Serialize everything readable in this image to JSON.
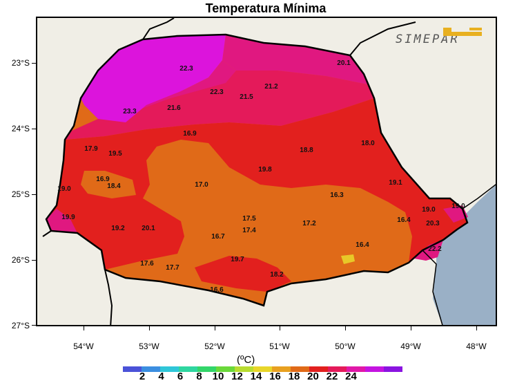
{
  "title": "Temperatura Mínima",
  "logo": "SIMEPAR",
  "units": "(ºC)",
  "y_labels": [
    "23°S",
    "24°S",
    "25°S",
    "26°S",
    "27°S"
  ],
  "x_labels": [
    "54°W",
    "53°W",
    "52°W",
    "51°W",
    "50°W",
    "49°W",
    "48°W"
  ],
  "colorbar": {
    "colors": [
      "#4a52d8",
      "#3b8ee0",
      "#2fc6d8",
      "#2fd6a0",
      "#33d66a",
      "#6ad83a",
      "#b8dc30",
      "#e8d62a",
      "#e8a020",
      "#e06a18",
      "#e2201e",
      "#e41a5a",
      "#e018a8",
      "#c414e0",
      "#8a14e0"
    ],
    "labels": [
      "2",
      "4",
      "6",
      "8",
      "10",
      "12",
      "14",
      "16",
      "18",
      "20",
      "22",
      "24"
    ]
  },
  "values": [
    {
      "t": "22.3"
    },
    {
      "t": "20.1"
    },
    {
      "t": "22.3"
    },
    {
      "t": "21.2"
    },
    {
      "t": "21.5"
    },
    {
      "t": "23.3"
    },
    {
      "t": "21.6"
    },
    {
      "t": "16.9"
    },
    {
      "t": "17.9"
    },
    {
      "t": "19.5"
    },
    {
      "t": "18.8"
    },
    {
      "t": "18.0"
    },
    {
      "t": "19.8"
    },
    {
      "t": "16.9"
    },
    {
      "t": "18.4"
    },
    {
      "t": "17.0"
    },
    {
      "t": "19.0"
    },
    {
      "t": "19.1"
    },
    {
      "t": "16.3"
    },
    {
      "t": "19.0"
    },
    {
      "t": "19.0"
    },
    {
      "t": "19.9"
    },
    {
      "t": "17.5"
    },
    {
      "t": "19.2"
    },
    {
      "t": "20.1"
    },
    {
      "t": "17.4"
    },
    {
      "t": "17.2"
    },
    {
      "t": "16.4"
    },
    {
      "t": "20.3"
    },
    {
      "t": "16.7"
    },
    {
      "t": "16.4"
    },
    {
      "t": "22.2"
    },
    {
      "t": "17.6"
    },
    {
      "t": "17.7"
    },
    {
      "t": "19.7"
    },
    {
      "t": "18.2"
    },
    {
      "t": "16.6"
    }
  ]
}
